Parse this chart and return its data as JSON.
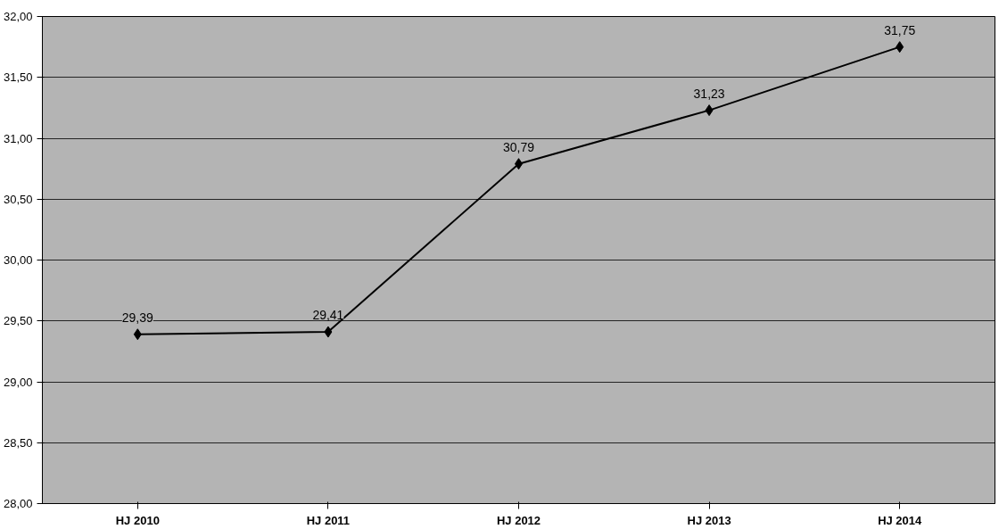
{
  "chart_data": {
    "type": "line",
    "categories": [
      "HJ 2010",
      "HJ 2011",
      "HJ 2012",
      "HJ 2013",
      "HJ 2014"
    ],
    "series": [
      {
        "color": "#000000",
        "values": [
          29.39,
          29.41,
          30.79,
          31.23,
          31.75
        ],
        "value_labels": [
          "29,39",
          "29,41",
          "30,79",
          "31,23",
          "31,75"
        ]
      }
    ],
    "ylim": [
      28,
      32
    ],
    "yticks": [
      {
        "value": 28,
        "label": "28,00"
      },
      {
        "value": 28.5,
        "label": "28,50"
      },
      {
        "value": 29,
        "label": "29,00"
      },
      {
        "value": 29.5,
        "label": "29,50"
      },
      {
        "value": 30,
        "label": "30,00"
      },
      {
        "value": 30.5,
        "label": "30,50"
      },
      {
        "value": 31,
        "label": "31,00"
      },
      {
        "value": 31.5,
        "label": "31,50"
      },
      {
        "value": 32,
        "label": "32,00"
      }
    ],
    "grid": "y",
    "marker": "diamond",
    "line_style": "solid"
  }
}
